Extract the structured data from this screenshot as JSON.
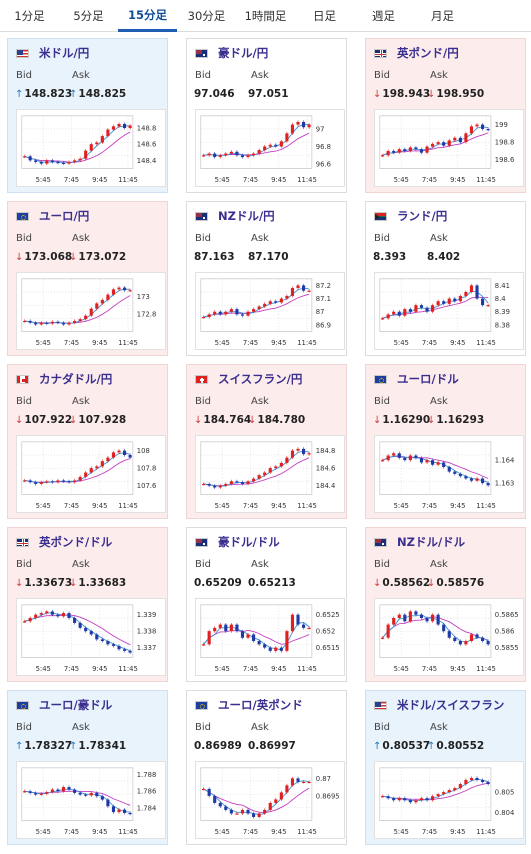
{
  "tabs": [
    {
      "label": "1分足",
      "active": false
    },
    {
      "label": "5分足",
      "active": false
    },
    {
      "label": "15分足",
      "active": true
    },
    {
      "label": "30分足",
      "active": false
    },
    {
      "label": "1時間足",
      "active": false
    },
    {
      "label": "日足",
      "active": false
    },
    {
      "label": "週足",
      "active": false
    },
    {
      "label": "月足",
      "active": false
    }
  ],
  "labels": {
    "bid": "Bid",
    "ask": "Ask"
  },
  "colors": {
    "up_bg": "#e9f3fc",
    "down_bg": "#fcecec",
    "up_arrow": "#1f78c8",
    "down_arrow": "#d23b3b",
    "title": "#3a2f8f",
    "candle_up": "#e02020",
    "candle_down": "#1f3aa8",
    "ma_short": "#3b8fd1",
    "ma_long": "#c23cc2"
  },
  "cards": [
    {
      "title": "米ドル/円",
      "flag": "us-jp",
      "state": "up",
      "dir": "up",
      "bid": "148.823",
      "ask": "148.825",
      "chart_data": {
        "type": "candlestick",
        "x_ticks": [
          "5:45",
          "7:45",
          "9:45",
          "11:45"
        ],
        "y_ticks": [
          "148.8",
          "148.6",
          "148.4"
        ],
        "ylim": [
          148.3,
          148.95
        ],
        "values": [
          148.45,
          148.4,
          148.38,
          148.36,
          148.4,
          148.38,
          148.37,
          148.36,
          148.38,
          148.4,
          148.42,
          148.52,
          148.6,
          148.62,
          148.7,
          148.78,
          148.82,
          148.85,
          148.8,
          148.83
        ]
      }
    },
    {
      "title": "豪ドル/円",
      "flag": "au-jp",
      "state": "flat",
      "dir": "none",
      "bid": "97.046",
      "ask": "97.051",
      "chart_data": {
        "type": "candlestick",
        "x_ticks": [
          "5:45",
          "7:45",
          "9:45",
          "11:45"
        ],
        "y_ticks": [
          "97",
          "96.8",
          "96.6"
        ],
        "ylim": [
          96.55,
          97.15
        ],
        "values": [
          96.7,
          96.72,
          96.68,
          96.7,
          96.72,
          96.74,
          96.7,
          96.68,
          96.7,
          96.72,
          96.76,
          96.8,
          96.82,
          96.8,
          96.86,
          96.95,
          97.05,
          97.08,
          97.02,
          97.05
        ]
      }
    },
    {
      "title": "英ポンド/円",
      "flag": "gb-jp",
      "state": "down",
      "dir": "down",
      "bid": "198.943",
      "ask": "198.950",
      "chart_data": {
        "type": "candlestick",
        "x_ticks": [
          "5:45",
          "7:45",
          "9:45",
          "11:45"
        ],
        "y_ticks": [
          "199",
          "198.8",
          "198.6"
        ],
        "ylim": [
          198.5,
          199.1
        ],
        "values": [
          198.65,
          198.7,
          198.68,
          198.72,
          198.7,
          198.74,
          198.72,
          198.68,
          198.75,
          198.78,
          198.8,
          198.76,
          198.82,
          198.85,
          198.8,
          198.9,
          198.98,
          199.0,
          198.95,
          198.94
        ]
      }
    },
    {
      "title": "ユーロ/円",
      "flag": "eu-jp",
      "state": "down",
      "dir": "down",
      "bid": "173.068",
      "ask": "173.072",
      "chart_data": {
        "type": "candlestick",
        "x_ticks": [
          "5:45",
          "7:45",
          "9:45",
          "11:45"
        ],
        "y_ticks": [
          "173",
          "172.8"
        ],
        "ylim": [
          172.6,
          173.2
        ],
        "values": [
          172.72,
          172.7,
          172.68,
          172.7,
          172.69,
          172.71,
          172.7,
          172.68,
          172.7,
          172.72,
          172.74,
          172.78,
          172.86,
          172.92,
          172.96,
          173.02,
          173.08,
          173.1,
          173.07,
          173.07
        ]
      }
    },
    {
      "title": "NZドル/円",
      "flag": "nz-jp",
      "state": "flat",
      "dir": "none",
      "bid": "87.163",
      "ask": "87.170",
      "chart_data": {
        "type": "candlestick",
        "x_ticks": [
          "5:45",
          "7:45",
          "9:45",
          "11:45"
        ],
        "y_ticks": [
          "87.2",
          "87.1",
          "87",
          "86.9"
        ],
        "ylim": [
          86.85,
          87.25
        ],
        "values": [
          86.96,
          86.98,
          87.0,
          86.98,
          87.0,
          87.02,
          86.98,
          86.97,
          87.0,
          87.02,
          87.04,
          87.06,
          87.08,
          87.07,
          87.1,
          87.12,
          87.18,
          87.2,
          87.16,
          87.16
        ]
      }
    },
    {
      "title": "ランド/円",
      "flag": "za-jp",
      "state": "flat",
      "dir": "none",
      "bid": "8.393",
      "ask": "8.402",
      "chart_data": {
        "type": "candlestick",
        "x_ticks": [
          "5:45",
          "7:45",
          "9:45",
          "11:45"
        ],
        "y_ticks": [
          "8.41",
          "8.4",
          "8.39",
          "8.38"
        ],
        "ylim": [
          8.375,
          8.415
        ],
        "values": [
          8.385,
          8.388,
          8.39,
          8.387,
          8.392,
          8.39,
          8.395,
          8.393,
          8.39,
          8.395,
          8.398,
          8.396,
          8.4,
          8.398,
          8.402,
          8.405,
          8.41,
          8.4,
          8.395,
          8.395
        ]
      }
    },
    {
      "title": "カナダドル/円",
      "flag": "ca-jp",
      "state": "down",
      "dir": "down",
      "bid": "107.922",
      "ask": "107.928",
      "chart_data": {
        "type": "candlestick",
        "x_ticks": [
          "5:45",
          "7:45",
          "9:45",
          "11:45"
        ],
        "y_ticks": [
          "108",
          "107.8",
          "107.6"
        ],
        "ylim": [
          107.5,
          108.1
        ],
        "values": [
          107.66,
          107.64,
          107.62,
          107.64,
          107.65,
          107.64,
          107.66,
          107.65,
          107.64,
          107.66,
          107.7,
          107.75,
          107.8,
          107.82,
          107.88,
          107.92,
          107.98,
          108.0,
          107.95,
          107.92
        ]
      }
    },
    {
      "title": "スイスフラン/円",
      "flag": "ch-jp",
      "state": "down",
      "dir": "down",
      "bid": "184.764",
      "ask": "184.780",
      "chart_data": {
        "type": "candlestick",
        "x_ticks": [
          "5:45",
          "7:45",
          "9:45",
          "11:45"
        ],
        "y_ticks": [
          "184.8",
          "184.6",
          "184.4"
        ],
        "ylim": [
          184.3,
          184.9
        ],
        "values": [
          184.42,
          184.4,
          184.38,
          184.4,
          184.42,
          184.45,
          184.44,
          184.42,
          184.45,
          184.48,
          184.52,
          184.55,
          184.6,
          184.62,
          184.66,
          184.72,
          184.8,
          184.82,
          184.76,
          184.77
        ]
      }
    },
    {
      "title": "ユーロ/ドル",
      "flag": "eu-us",
      "state": "down",
      "dir": "down",
      "bid": "1.16290",
      "ask": "1.16293",
      "chart_data": {
        "type": "candlestick",
        "x_ticks": [
          "5:45",
          "7:45",
          "9:45",
          "11:45"
        ],
        "y_ticks": [
          "1.164",
          "1.163"
        ],
        "ylim": [
          1.1625,
          1.1648
        ],
        "values": [
          1.164,
          1.1642,
          1.1643,
          1.1641,
          1.164,
          1.1642,
          1.1641,
          1.1639,
          1.164,
          1.1638,
          1.1639,
          1.1637,
          1.1635,
          1.1634,
          1.1633,
          1.1632,
          1.1631,
          1.1632,
          1.163,
          1.1629
        ]
      }
    },
    {
      "title": "英ポンド/ドル",
      "flag": "gb-us",
      "state": "down",
      "dir": "down",
      "bid": "1.33673",
      "ask": "1.33683",
      "chart_data": {
        "type": "candlestick",
        "x_ticks": [
          "5:45",
          "7:45",
          "9:45",
          "11:45"
        ],
        "y_ticks": [
          "1.339",
          "1.338",
          "1.337"
        ],
        "ylim": [
          1.3364,
          1.3396
        ],
        "values": [
          1.3386,
          1.3388,
          1.339,
          1.3391,
          1.3392,
          1.339,
          1.3389,
          1.3391,
          1.3388,
          1.3385,
          1.3382,
          1.338,
          1.3378,
          1.3375,
          1.3374,
          1.3372,
          1.3371,
          1.3369,
          1.3368,
          1.3367
        ]
      }
    },
    {
      "title": "豪ドル/ドル",
      "flag": "au-us",
      "state": "flat",
      "dir": "none",
      "bid": "0.65209",
      "ask": "0.65213",
      "chart_data": {
        "type": "candlestick",
        "x_ticks": [
          "5:45",
          "7:45",
          "9:45",
          "11:45"
        ],
        "y_ticks": [
          "0.6525",
          "0.652",
          "0.6515"
        ],
        "ylim": [
          0.6512,
          0.6528
        ],
        "values": [
          0.6516,
          0.652,
          0.6521,
          0.6522,
          0.652,
          0.6522,
          0.652,
          0.6518,
          0.6519,
          0.6517,
          0.6516,
          0.6515,
          0.6514,
          0.6515,
          0.6514,
          0.652,
          0.6525,
          0.6522,
          0.6521,
          0.6521
        ]
      }
    },
    {
      "title": "NZドル/ドル",
      "flag": "nz-us",
      "state": "down",
      "dir": "down",
      "bid": "0.58562",
      "ask": "0.58576",
      "chart_data": {
        "type": "candlestick",
        "x_ticks": [
          "5:45",
          "7:45",
          "9:45",
          "11:45"
        ],
        "y_ticks": [
          "0.5865",
          "0.586",
          "0.5855"
        ],
        "ylim": [
          0.5852,
          0.5868
        ],
        "values": [
          0.5858,
          0.5862,
          0.5864,
          0.5865,
          0.5863,
          0.5866,
          0.5865,
          0.5864,
          0.5863,
          0.5865,
          0.5862,
          0.586,
          0.5858,
          0.5857,
          0.5856,
          0.5857,
          0.5859,
          0.5858,
          0.5857,
          0.5856
        ]
      }
    },
    {
      "title": "ユーロ/豪ドル",
      "flag": "eu-au",
      "state": "up",
      "dir": "up",
      "bid": "1.78327",
      "ask": "1.78341",
      "chart_data": {
        "type": "candlestick",
        "x_ticks": [
          "5:45",
          "7:45",
          "9:45",
          "11:45"
        ],
        "y_ticks": [
          "1.788",
          "1.786",
          "1.784"
        ],
        "ylim": [
          1.7825,
          1.7888
        ],
        "values": [
          1.786,
          1.7858,
          1.7856,
          1.7857,
          1.7859,
          1.7862,
          1.786,
          1.7865,
          1.7862,
          1.7858,
          1.7856,
          1.7855,
          1.7858,
          1.7854,
          1.785,
          1.7842,
          1.7835,
          1.7838,
          1.7834,
          1.7833
        ]
      }
    },
    {
      "title": "ユーロ/英ポンド",
      "flag": "eu-gb",
      "state": "flat",
      "dir": "none",
      "bid": "0.86989",
      "ask": "0.86997",
      "chart_data": {
        "type": "candlestick",
        "x_ticks": [
          "5:45",
          "7:45",
          "9:45",
          "11:45"
        ],
        "y_ticks": [
          "0.87",
          "0.8695"
        ],
        "ylim": [
          0.8688,
          0.8703
        ],
        "values": [
          0.8697,
          0.8695,
          0.8693,
          0.8692,
          0.8691,
          0.869,
          0.869,
          0.8691,
          0.869,
          0.8689,
          0.869,
          0.8691,
          0.8693,
          0.8694,
          0.8696,
          0.8698,
          0.87,
          0.8699,
          0.8699,
          0.8699
        ]
      }
    },
    {
      "title": "米ドル/スイスフラン",
      "flag": "us-ch",
      "state": "up",
      "dir": "up",
      "bid": "0.80537",
      "ask": "0.80552",
      "chart_data": {
        "type": "candlestick",
        "x_ticks": [
          "5:45",
          "7:45",
          "9:45",
          "11:45"
        ],
        "y_ticks": [
          "0.805",
          "0.804"
        ],
        "ylim": [
          0.8036,
          0.8062
        ],
        "values": [
          0.8048,
          0.8047,
          0.8046,
          0.8047,
          0.8046,
          0.8045,
          0.8046,
          0.8047,
          0.8046,
          0.8048,
          0.8049,
          0.805,
          0.8051,
          0.8052,
          0.8054,
          0.8056,
          0.8057,
          0.8056,
          0.8055,
          0.8054
        ]
      }
    }
  ]
}
